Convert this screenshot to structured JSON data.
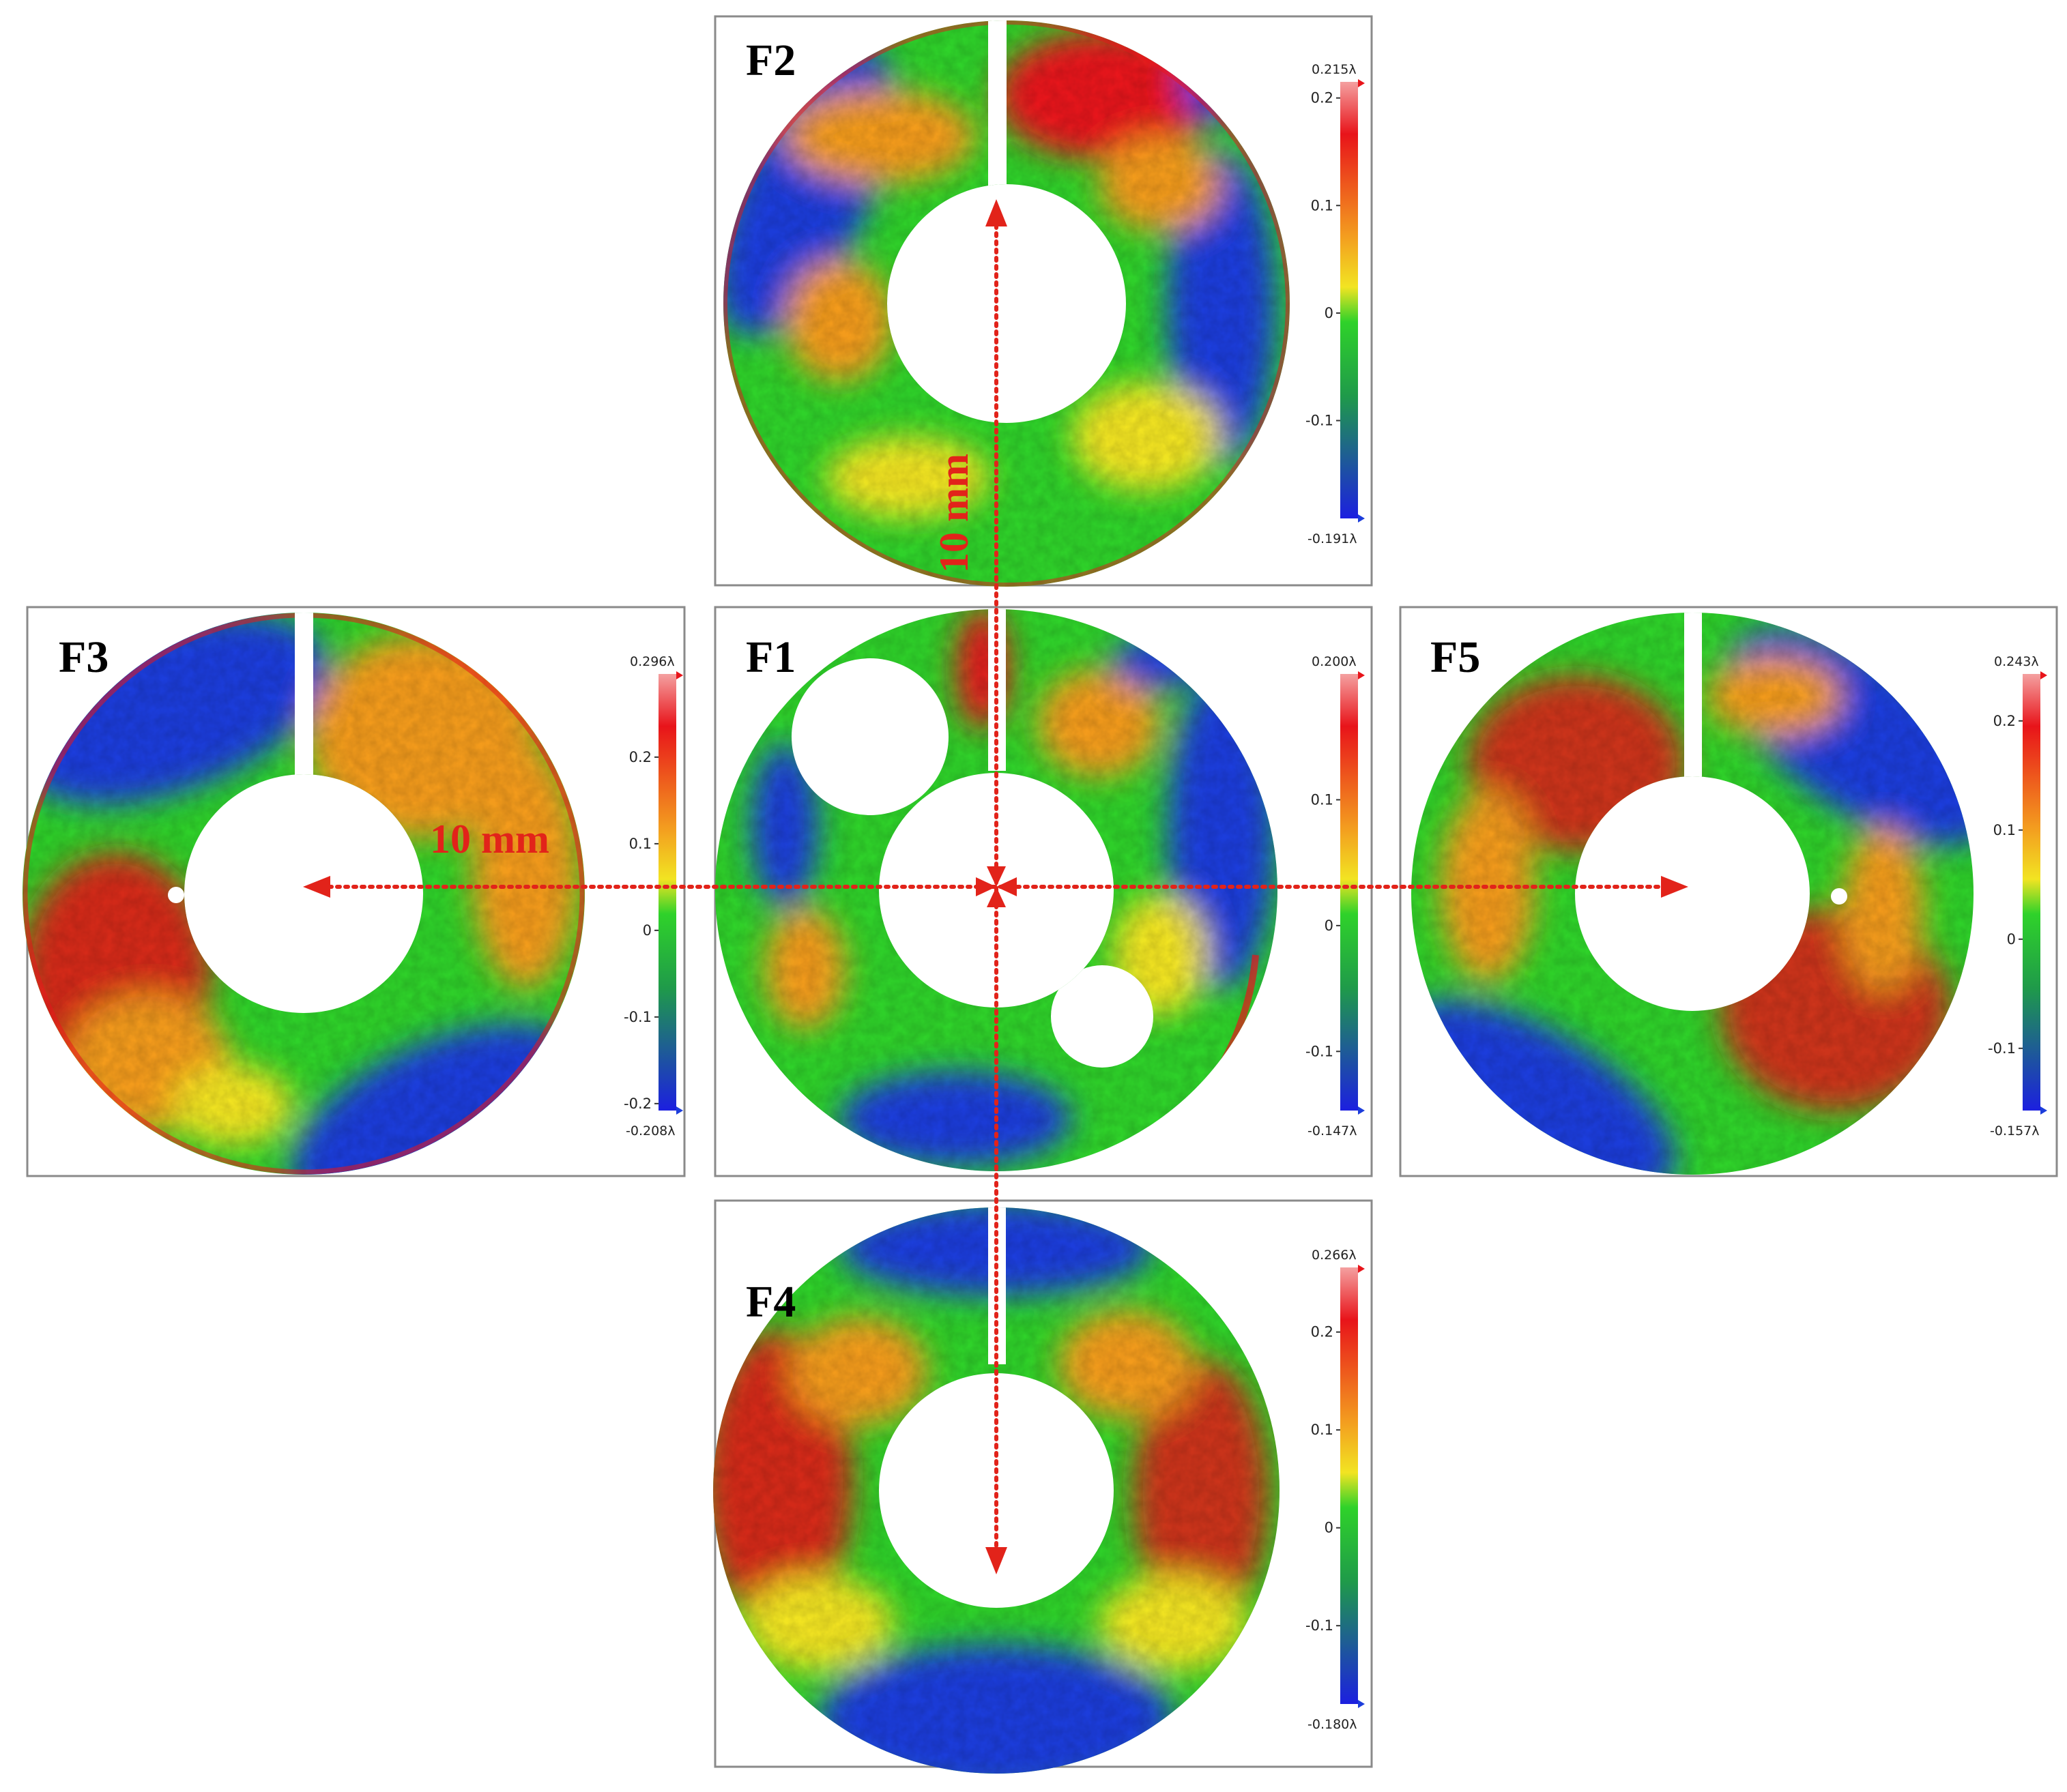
{
  "colors": {
    "red": "#e8141a",
    "orange": "#f39b1f",
    "yellow": "#f2e422",
    "green": "#2fd22a",
    "blue": "#1c3ddb",
    "dimension_red": "#e2231a",
    "frame": "#8a8a8a"
  },
  "panels": [
    {
      "id": "F1",
      "label": "F1",
      "max_label": "0.200λ",
      "min_label": "-0.147λ",
      "max": 0.2,
      "min": -0.147,
      "ticks": [
        "0.1",
        "0",
        "-0.1"
      ],
      "tick_values": [
        0.1,
        0,
        -0.1
      ]
    },
    {
      "id": "F2",
      "label": "F2",
      "max_label": "0.215λ",
      "min_label": "-0.191λ",
      "max": 0.215,
      "min": -0.191,
      "ticks": [
        "0.2",
        "0.1",
        "0",
        "-0.1"
      ],
      "tick_values": [
        0.2,
        0.1,
        0,
        -0.1
      ]
    },
    {
      "id": "F3",
      "label": "F3",
      "max_label": "0.296λ",
      "min_label": "-0.208λ",
      "max": 0.296,
      "min": -0.208,
      "ticks": [
        "0.2",
        "0.1",
        "0",
        "-0.1",
        "-0.2"
      ],
      "tick_values": [
        0.2,
        0.1,
        0,
        -0.1,
        -0.2
      ]
    },
    {
      "id": "F4",
      "label": "F4",
      "max_label": "0.266λ",
      "min_label": "-0.180λ",
      "max": 0.266,
      "min": -0.18,
      "ticks": [
        "0.2",
        "0.1",
        "0",
        "-0.1"
      ],
      "tick_values": [
        0.2,
        0.1,
        0,
        -0.1
      ]
    },
    {
      "id": "F5",
      "label": "F5",
      "max_label": "0.243λ",
      "min_label": "-0.157λ",
      "max": 0.243,
      "min": -0.157,
      "ticks": [
        "0.2",
        "0.1",
        "0",
        "-0.1"
      ],
      "tick_values": [
        0.2,
        0.1,
        0,
        -0.1
      ]
    }
  ],
  "dimensions": {
    "vertical_label": "10 mm",
    "horizontal_label": "10 mm"
  }
}
